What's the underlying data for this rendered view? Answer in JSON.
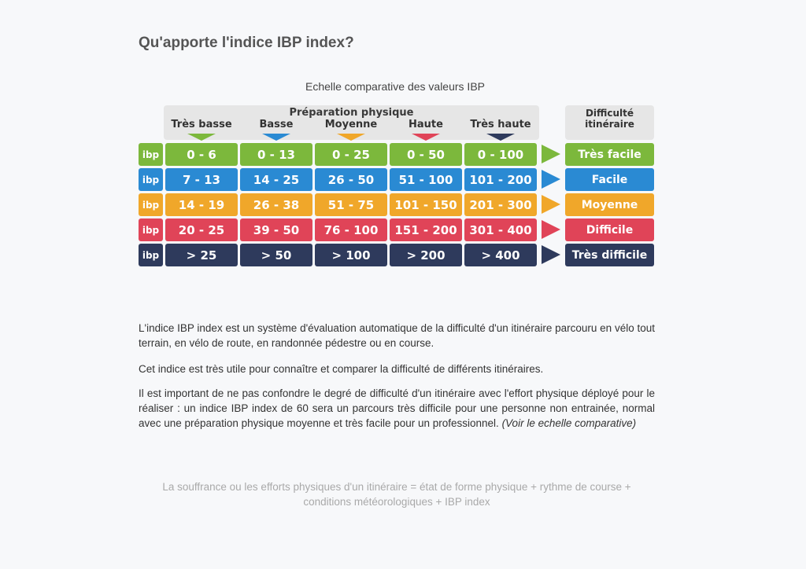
{
  "title": "Qu'apporte l'indice IBP index?",
  "caption": "Echelle comparative des valeurs IBP",
  "header": {
    "prep_title": "Préparation physique",
    "levels": [
      "Très basse",
      "Basse",
      "Moyenne",
      "Haute",
      "Très haute"
    ],
    "level_colors": [
      "#7cb83c",
      "#2a8ad3",
      "#f0a72a",
      "#e04458",
      "#2e3a5c"
    ],
    "difficulty_title_line1": "Difficulté",
    "difficulty_title_line2": "itinéraire"
  },
  "rows": [
    {
      "ibp": "ibp",
      "values": [
        "0 - 6",
        "0 - 13",
        "0 - 25",
        "0 - 50",
        "0 - 100"
      ],
      "difficulty": "Très facile",
      "color": "#7cb83c",
      "arrow": "#7cb83c"
    },
    {
      "ibp": "ibp",
      "values": [
        "7 - 13",
        "14 - 25",
        "26 - 50",
        "51 - 100",
        "101 - 200"
      ],
      "difficulty": "Facile",
      "color": "#2a8ad3",
      "arrow": "#2a8ad3"
    },
    {
      "ibp": "ibp",
      "values": [
        "14 - 19",
        "26 - 38",
        "51 - 75",
        "101 - 150",
        "201 - 300"
      ],
      "difficulty": "Moyenne",
      "color": "#f0a72a",
      "arrow": "#f0a72a"
    },
    {
      "ibp": "ibp",
      "values": [
        "20 - 25",
        "39 - 50",
        "76 - 100",
        "151 - 200",
        "301 - 400"
      ],
      "difficulty": "Difficile",
      "color": "#e04458",
      "arrow": "#e04458"
    },
    {
      "ibp": "ibp",
      "values": [
        "> 25",
        "> 50",
        "> 100",
        "> 200",
        "> 400"
      ],
      "difficulty": "Très difficile",
      "color": "#2e3a5c",
      "arrow": "#2e3a5c"
    }
  ],
  "paragraphs": {
    "p1": "L'indice IBP index est un système d'évaluation automatique de la difficulté d'un itinéraire parcouru en vélo tout terrain, en vélo de route, en randonnée pédestre ou en course.",
    "p2": "Cet indice est très utile pour connaître et comparer la difficulté de différents itinéraires.",
    "p3": "Il est important de ne pas confondre le degré de difficulté d'un itinéraire avec l'effort physique déployé pour le réaliser : un indice IBP index de 60 sera un parcours très difficile pour une personne non entrainée, normal avec une préparation physique moyenne et très facile pour un professionnel.",
    "p3_italic": "(Voir le echelle comparative)"
  },
  "footnote_line1": "La souffrance ou les efforts physiques d'un itinéraire = état de forme physique + rythme de course +",
  "footnote_line2": "conditions météorologiques + IBP index"
}
